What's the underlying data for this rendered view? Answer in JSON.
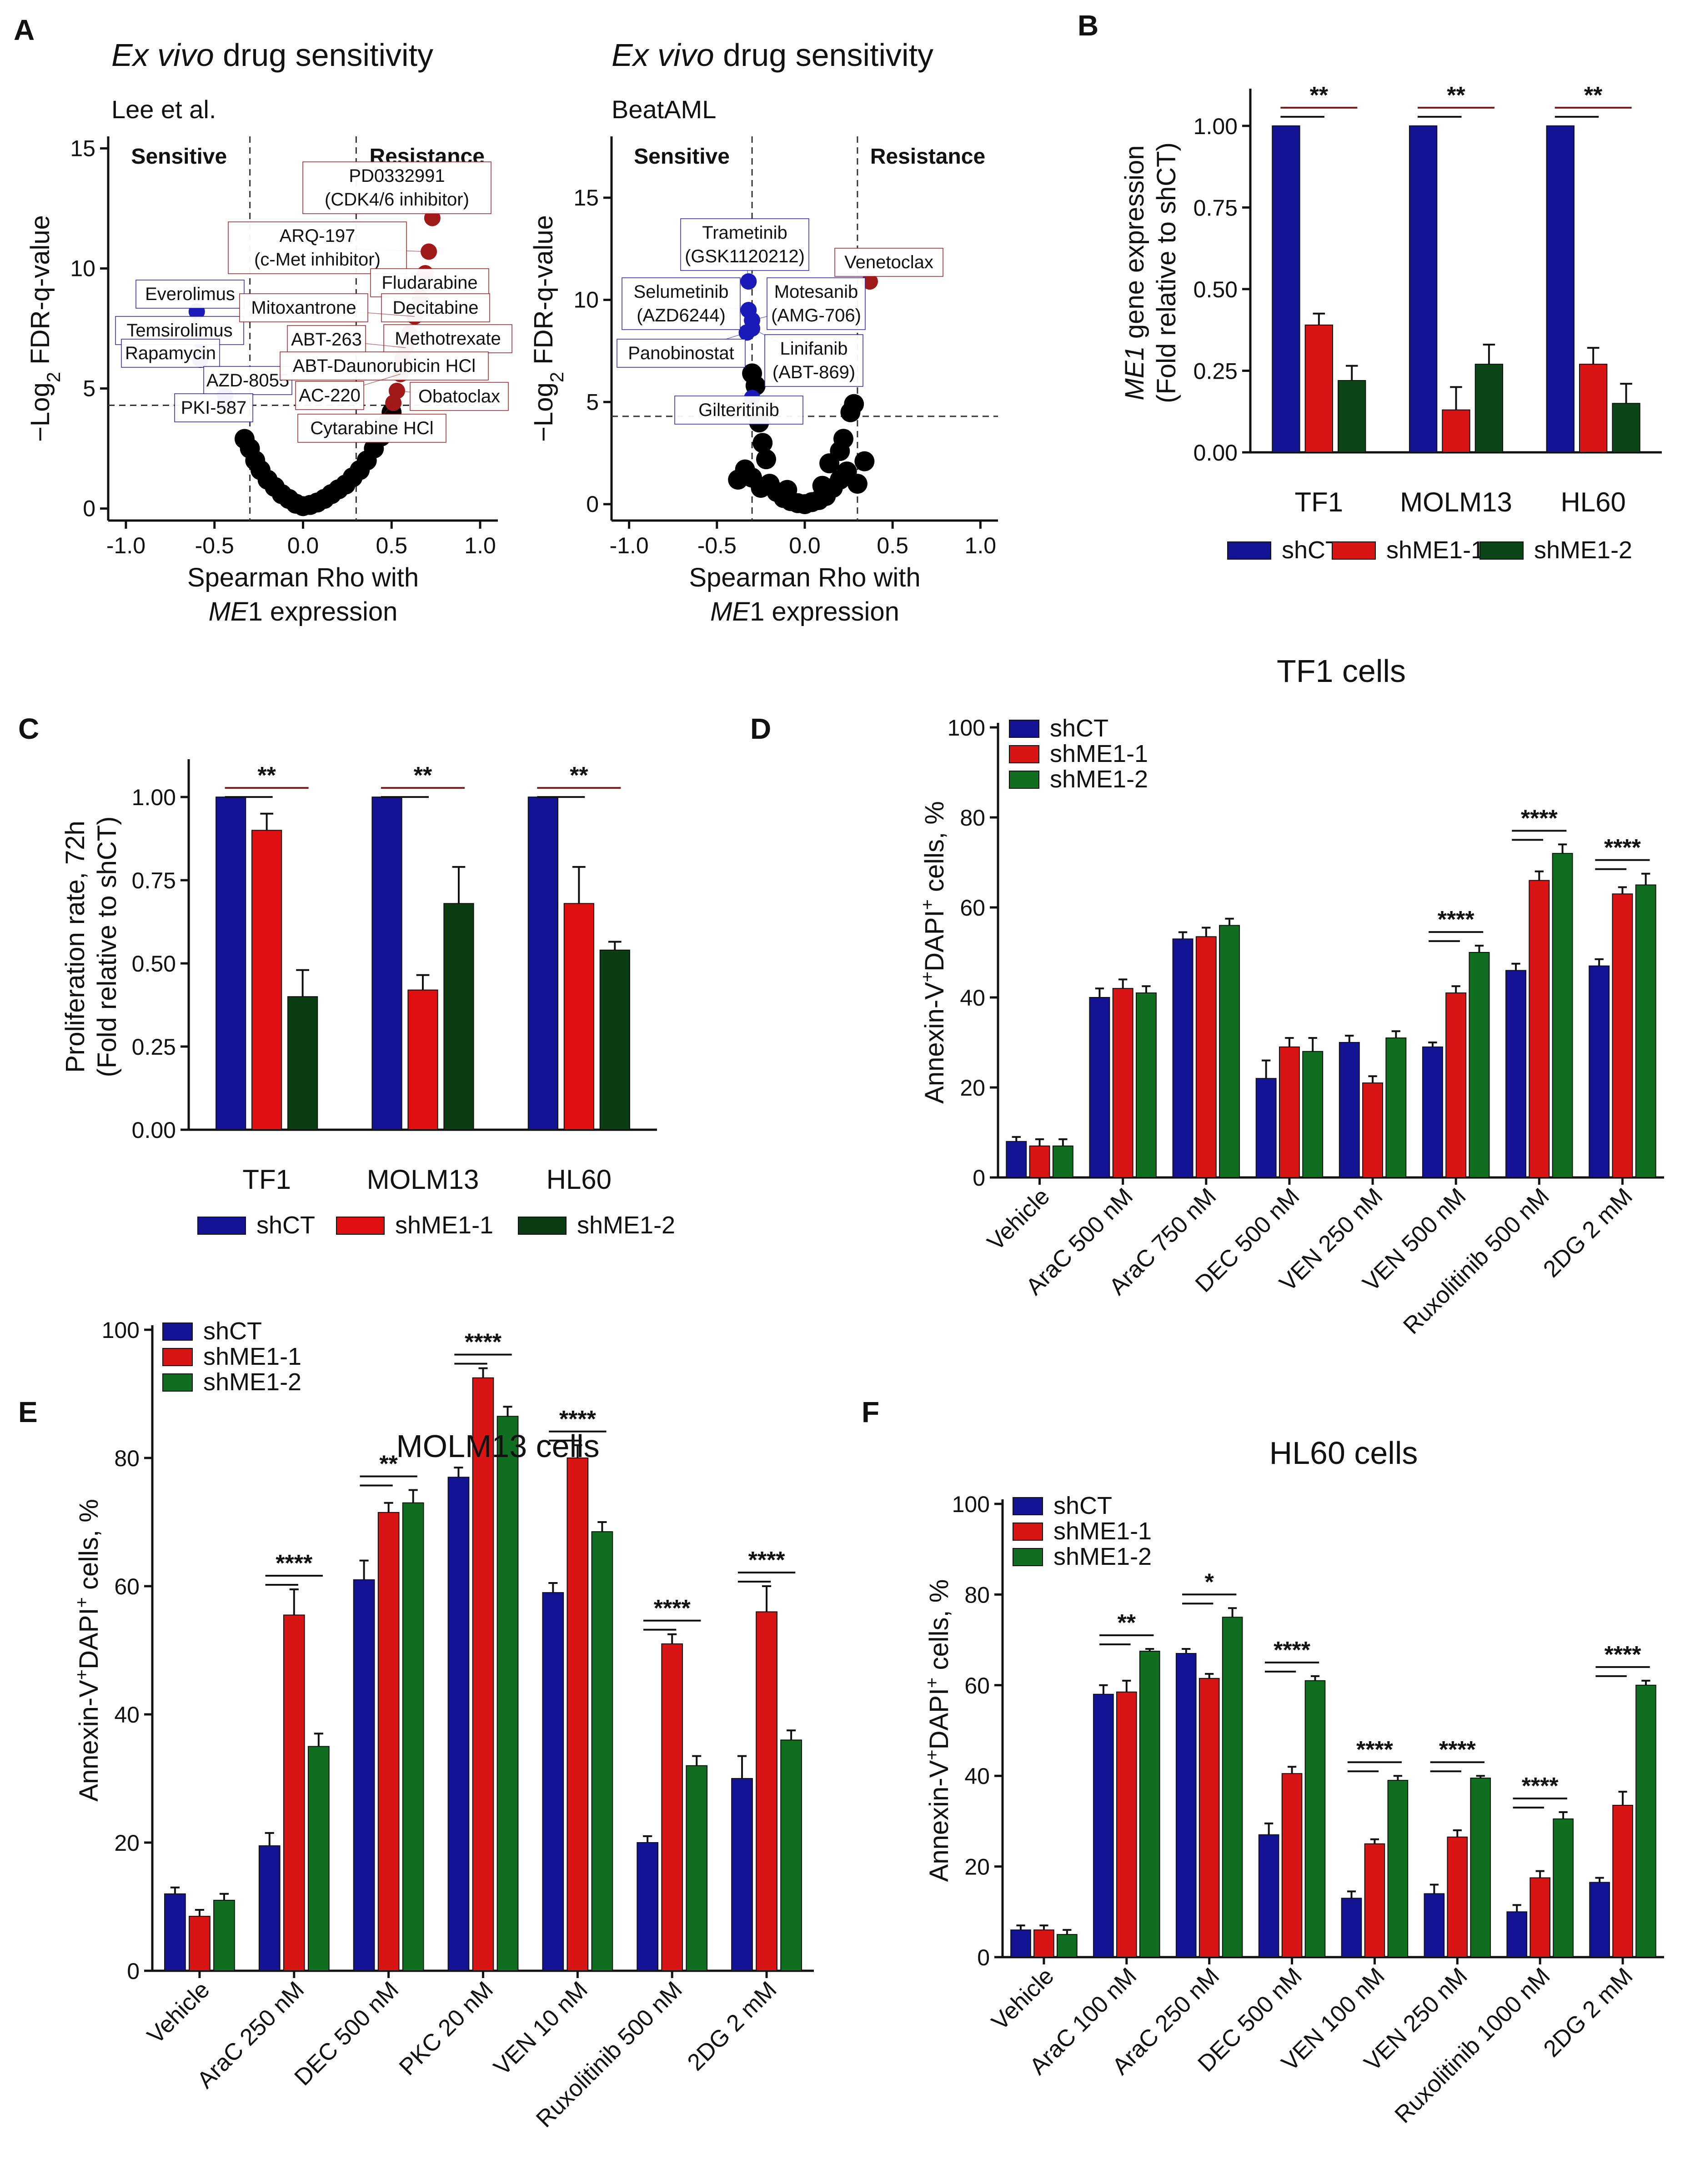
{
  "colors": {
    "shCT": "#131393",
    "shME1_1": "#d81414",
    "shME1_2": "#0f6e1f",
    "brown": "#7a1c1c",
    "sensitive": "#1a1ab8",
    "resistance": "#a01818"
  },
  "colors_C": {
    "shCT": "#131393",
    "shME1_1": "#e01010",
    "shME1_2": "#0b3d13"
  },
  "colors_B": {
    "shCT": "#131393",
    "shME1_1": "#d81414",
    "shME1_2": "#0c4518"
  },
  "chart_data": [
    {
      "panel": "A",
      "type": "scatter",
      "title_italic": "Ex vivo",
      "title_rest": " drug sensitivity",
      "source": "Lee et al.",
      "xlabel_line1": "Spearman Rho with",
      "xlabel_gene": "ME",
      "xlabel_rest": "1 expression",
      "ylabel_main": "−Log",
      "ylabel_sub": "2",
      "ylabel_rest": " FDR-q-value",
      "xlim": [
        -1.1,
        1.1
      ],
      "ylim": [
        -0.5,
        15.5
      ],
      "xticks": [
        "-1.0",
        "-0.5",
        "0.0",
        "0.5",
        "1.0"
      ],
      "xtick_values": [
        -1.0,
        -0.5,
        0.0,
        0.5,
        1.0
      ],
      "yticks": [
        "0",
        "5",
        "10",
        "15"
      ],
      "ytick_values": [
        0,
        5,
        10,
        15
      ],
      "vlines": [
        -0.3,
        0.3
      ],
      "hline": 4.3,
      "region_left": "Sensitive",
      "region_right": "Resistance",
      "black_points": [
        [
          -0.33,
          2.9
        ],
        [
          -0.3,
          2.5
        ],
        [
          -0.27,
          2.0
        ],
        [
          -0.24,
          1.6
        ],
        [
          -0.2,
          1.2
        ],
        [
          -0.16,
          0.9
        ],
        [
          -0.12,
          0.6
        ],
        [
          -0.08,
          0.4
        ],
        [
          -0.04,
          0.2
        ],
        [
          0.0,
          0.1
        ],
        [
          0.04,
          0.15
        ],
        [
          0.08,
          0.25
        ],
        [
          0.12,
          0.4
        ],
        [
          0.16,
          0.6
        ],
        [
          0.2,
          0.8
        ],
        [
          0.24,
          1.0
        ],
        [
          0.28,
          1.3
        ],
        [
          0.32,
          1.6
        ],
        [
          0.36,
          2.0
        ],
        [
          0.4,
          2.5
        ],
        [
          0.44,
          3.0
        ],
        [
          0.48,
          3.6
        ],
        [
          0.5,
          4.0
        ]
      ],
      "blue_points": [
        {
          "x": -0.6,
          "y": 8.2,
          "label": "Everolimus"
        },
        {
          "x": -0.58,
          "y": 7.0,
          "label": "Temsirolimus"
        },
        {
          "x": -0.58,
          "y": 6.2,
          "label": "Rapamycin"
        },
        {
          "x": -0.44,
          "y": 4.7,
          "label": "AZD-8055"
        },
        {
          "x": -0.44,
          "y": 4.3,
          "label": "PKI-587"
        }
      ],
      "red_points": [
        {
          "x": 0.73,
          "y": 12.1,
          "label": "PD0332991\n(CDK4/6 inhibitor)"
        },
        {
          "x": 0.71,
          "y": 10.7,
          "label": "ARQ-197\n(c-Met inhibitor)"
        },
        {
          "x": 0.69,
          "y": 9.8,
          "label": "Fludarabine"
        },
        {
          "x": 0.66,
          "y": 8.8,
          "label": "Decitabine"
        },
        {
          "x": 0.63,
          "y": 8.0,
          "label": "Mitoxantrone"
        },
        {
          "x": 0.6,
          "y": 7.3,
          "label": "Methotrexate"
        },
        {
          "x": 0.58,
          "y": 6.7,
          "label": "ABT-263"
        },
        {
          "x": 0.56,
          "y": 6.2,
          "label": "ABT-Daunorubicin HCl"
        },
        {
          "x": 0.55,
          "y": 5.6,
          "label": "AC-220"
        },
        {
          "x": 0.53,
          "y": 4.9,
          "label": "Obatoclax"
        },
        {
          "x": 0.51,
          "y": 4.4,
          "label": "Cytarabine HCl"
        }
      ]
    },
    {
      "panel": "A2",
      "type": "scatter",
      "title_italic": "Ex vivo",
      "title_rest": " drug sensitivity",
      "source": "BeatAML",
      "xlabel_line1": "Spearman Rho with",
      "xlabel_gene": "ME",
      "xlabel_rest": "1 expression",
      "ylabel_main": "−Log",
      "ylabel_sub": "2",
      "ylabel_rest": " FDR-q-value",
      "xlim": [
        -1.1,
        1.1
      ],
      "ylim": [
        -0.8,
        18.0
      ],
      "xticks": [
        "-1.0",
        "-0.5",
        "0.0",
        "0.5",
        "1.0"
      ],
      "xtick_values": [
        -1.0,
        -0.5,
        0.0,
        0.5,
        1.0
      ],
      "yticks": [
        "0",
        "5",
        "10",
        "15"
      ],
      "ytick_values": [
        0,
        5,
        10,
        15
      ],
      "vlines": [
        -0.3,
        0.3
      ],
      "hline": 4.3,
      "region_left": "Sensitive",
      "region_right": "Resistance",
      "black_points": [
        [
          -0.3,
          6.4
        ],
        [
          -0.28,
          5.8
        ],
        [
          -0.26,
          4.0
        ],
        [
          -0.24,
          3.0
        ],
        [
          -0.34,
          1.7
        ],
        [
          -0.3,
          1.3
        ],
        [
          -0.2,
          1.0
        ],
        [
          -0.16,
          0.6
        ],
        [
          -0.12,
          0.3
        ],
        [
          -0.08,
          0.15
        ],
        [
          -0.04,
          0.05
        ],
        [
          0.0,
          0.0
        ],
        [
          0.04,
          0.1
        ],
        [
          0.08,
          0.2
        ],
        [
          0.12,
          0.4
        ],
        [
          0.16,
          0.8
        ],
        [
          0.2,
          1.2
        ],
        [
          0.24,
          1.6
        ],
        [
          0.2,
          2.6
        ],
        [
          0.22,
          3.2
        ],
        [
          0.26,
          4.5
        ],
        [
          0.28,
          4.9
        ],
        [
          0.34,
          2.1
        ],
        [
          0.3,
          1.0
        ],
        [
          -0.38,
          1.2
        ],
        [
          -0.22,
          2.2
        ],
        [
          -0.25,
          0.8
        ],
        [
          0.1,
          0.9
        ],
        [
          -0.1,
          0.7
        ],
        [
          0.14,
          2.0
        ]
      ],
      "blue_points": [
        {
          "x": -0.32,
          "y": 10.9,
          "label": "Trametinib\n(GSK1120212)"
        },
        {
          "x": -0.32,
          "y": 9.5,
          "label": "Selumetinib\n(AZD6244)"
        },
        {
          "x": -0.3,
          "y": 9.0,
          "label": "Motesanib\n(AMG-706)"
        },
        {
          "x": -0.33,
          "y": 8.4,
          "label": "Panobinostat"
        },
        {
          "x": -0.3,
          "y": 8.6,
          "label": "Linifanib\n(ABT-869)"
        },
        {
          "x": -0.3,
          "y": 5.2,
          "label": "Gilteritinib"
        }
      ],
      "red_points": [
        {
          "x": 0.37,
          "y": 10.9,
          "label": "Venetoclax"
        }
      ]
    },
    {
      "panel": "B",
      "type": "bar",
      "ylabel_gene": "ME1",
      "ylabel_rest": " gene expression",
      "ylabel_line2": "(Fold relative to shCT)",
      "ylim": [
        0,
        1.1
      ],
      "yticks": [
        "0.00",
        "0.25",
        "0.50",
        "0.75",
        "1.00"
      ],
      "ytick_values": [
        0,
        0.25,
        0.5,
        0.75,
        1.0
      ],
      "categories": [
        "TF1",
        "MOLM13",
        "HL60"
      ],
      "series": [
        {
          "name": "shCT",
          "values": [
            1.0,
            1.0,
            1.0
          ],
          "err": [
            0,
            0,
            0
          ]
        },
        {
          "name": "shME1-1",
          "values": [
            0.39,
            0.13,
            0.27
          ],
          "err": [
            0.035,
            0.07,
            0.05
          ]
        },
        {
          "name": "shME1-2",
          "values": [
            0.22,
            0.27,
            0.15
          ],
          "err": [
            0.045,
            0.06,
            0.06
          ]
        }
      ],
      "sig": [
        "**",
        "**",
        "**"
      ]
    },
    {
      "panel": "C",
      "type": "bar",
      "ylabel_line1": "Proliferation rate, 72h",
      "ylabel_line2": "(Fold relative to shCT)",
      "ylim": [
        0,
        1.1
      ],
      "yticks": [
        "0.00",
        "0.25",
        "0.50",
        "0.75",
        "1.00"
      ],
      "ytick_values": [
        0,
        0.25,
        0.5,
        0.75,
        1.0
      ],
      "categories": [
        "TF1",
        "MOLM13",
        "HL60"
      ],
      "series": [
        {
          "name": "shCT",
          "values": [
            1.0,
            1.0,
            1.0
          ],
          "err": [
            0,
            0,
            0
          ]
        },
        {
          "name": "shME1-1",
          "values": [
            0.9,
            0.42,
            0.68
          ],
          "err": [
            0.05,
            0.045,
            0.11
          ]
        },
        {
          "name": "shME1-2",
          "values": [
            0.4,
            0.68,
            0.54
          ],
          "err": [
            0.08,
            0.11,
            0.025
          ]
        }
      ],
      "sig": [
        "**",
        "**",
        "**"
      ]
    },
    {
      "panel": "D",
      "type": "bar",
      "title": "TF1 cells",
      "ylabel_pre": "Annexin-V",
      "ylabel_sup1": "+",
      "ylabel_mid": "DAPI",
      "ylabel_sup2": "+",
      "ylabel_post": " cells, %",
      "ylim": [
        0,
        100
      ],
      "yticks": [
        "0",
        "20",
        "40",
        "60",
        "80",
        "100"
      ],
      "ytick_values": [
        0,
        20,
        40,
        60,
        80,
        100
      ],
      "categories": [
        "Vehicle",
        "AraC 500 nM",
        "AraC 750 nM",
        "DEC 500 nM",
        "VEN 250 nM",
        "VEN 500 nM",
        "Ruxolitinib 500 nM",
        "2DG 2 mM"
      ],
      "series": [
        {
          "name": "shCT",
          "values": [
            8,
            40,
            53,
            22,
            30,
            29,
            46,
            47
          ],
          "err": [
            1,
            2,
            1.5,
            4,
            1.5,
            1,
            1.5,
            1.5
          ]
        },
        {
          "name": "shME1-1",
          "values": [
            7,
            42,
            53.5,
            29,
            21,
            41,
            66,
            63
          ],
          "err": [
            1.5,
            2,
            2,
            2,
            1.5,
            1.5,
            2,
            1.5
          ]
        },
        {
          "name": "shME1-2",
          "values": [
            7,
            41,
            56,
            28,
            31,
            50,
            72,
            65
          ],
          "err": [
            1.5,
            1.5,
            1.5,
            3,
            1.5,
            1.5,
            2,
            2.5
          ]
        }
      ],
      "sig": [
        "",
        "",
        "",
        "",
        "",
        "****",
        "****",
        "****"
      ]
    },
    {
      "panel": "E",
      "type": "bar",
      "title": "MOLM13 cells",
      "ylabel_pre": "Annexin-V",
      "ylabel_sup1": "+",
      "ylabel_mid": "DAPI",
      "ylabel_sup2": "+",
      "ylabel_post": " cells, %",
      "ylim": [
        0,
        100
      ],
      "yticks": [
        "0",
        "20",
        "40",
        "60",
        "80",
        "100"
      ],
      "ytick_values": [
        0,
        20,
        40,
        60,
        80,
        100
      ],
      "categories": [
        "Vehicle",
        "AraC 250 nM",
        "DEC 500 nM",
        "PKC 20 nM",
        "VEN 10 nM",
        "Ruxolitinib 500 nM",
        "2DG 2 mM"
      ],
      "series": [
        {
          "name": "shCT",
          "values": [
            12,
            19.5,
            61,
            77,
            59,
            20,
            30
          ],
          "err": [
            1,
            2,
            3,
            1.5,
            1.5,
            1,
            3.5
          ]
        },
        {
          "name": "shME1-1",
          "values": [
            8.5,
            55.5,
            71.5,
            92.5,
            80,
            51,
            56
          ],
          "err": [
            1,
            4,
            1.5,
            1.5,
            2,
            1.5,
            4
          ]
        },
        {
          "name": "shME1-2",
          "values": [
            11,
            35,
            73,
            86.5,
            68.5,
            32,
            36
          ],
          "err": [
            1,
            2,
            2,
            1.5,
            1.5,
            1.5,
            1.5
          ]
        }
      ],
      "sig": [
        "",
        "****",
        "**",
        "****",
        "****",
        "****",
        "****"
      ]
    },
    {
      "panel": "F",
      "type": "bar",
      "title": "HL60 cells",
      "ylabel_pre": "Annexin-V",
      "ylabel_sup1": "+",
      "ylabel_mid": "DAPI",
      "ylabel_sup2": "+",
      "ylabel_post": " cells, %",
      "ylim": [
        0,
        100
      ],
      "yticks": [
        "0",
        "20",
        "40",
        "60",
        "80",
        "100"
      ],
      "ytick_values": [
        0,
        20,
        40,
        60,
        80,
        100
      ],
      "categories": [
        "Vehicle",
        "AraC 100 nM",
        "AraC 250 nM",
        "DEC 500 nM",
        "VEN 100 nM",
        "VEN 250 nM",
        "Ruxolitinib 1000 nM",
        "2DG 2 mM"
      ],
      "series": [
        {
          "name": "shCT",
          "values": [
            6,
            58,
            67,
            27,
            13,
            14,
            10,
            16.5
          ],
          "err": [
            1,
            2,
            1,
            2.5,
            1.5,
            2,
            1.5,
            1
          ]
        },
        {
          "name": "shME1-1",
          "values": [
            6,
            58.5,
            61.5,
            40.5,
            25,
            26.5,
            17.5,
            33.5
          ],
          "err": [
            1,
            2.5,
            1,
            1.5,
            1,
            1.5,
            1.5,
            3
          ]
        },
        {
          "name": "shME1-2",
          "values": [
            5,
            67.5,
            75,
            61,
            39,
            39.5,
            30.5,
            60
          ],
          "err": [
            1,
            0.5,
            2,
            1,
            1,
            0.5,
            1.5,
            1
          ]
        }
      ],
      "sig": [
        "",
        "**",
        "*",
        "****",
        "****",
        "****",
        "****",
        "****"
      ]
    }
  ]
}
